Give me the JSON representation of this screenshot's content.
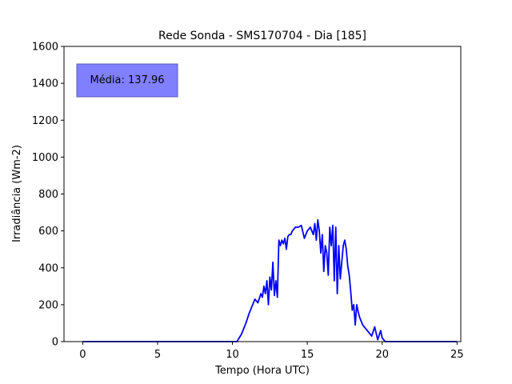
{
  "chart_data": {
    "type": "line",
    "title": "Rede Sonda - SMS170704 - Dia [185]",
    "xlabel": "Tempo (Hora UTC)",
    "ylabel": "Irradiância (Wm-2)",
    "xlim": [
      -1.25,
      25.25
    ],
    "ylim": [
      0,
      1600
    ],
    "x_ticks": [
      0,
      5,
      10,
      15,
      20,
      25
    ],
    "y_ticks": [
      0,
      200,
      400,
      600,
      800,
      1000,
      1200,
      1400,
      1600
    ],
    "grid": false,
    "annotation": "Média: 137.96",
    "annotation_color": "#8080ff",
    "series": [
      {
        "color": "#0000ff",
        "x": [
          0,
          10.3,
          10.6,
          10.9,
          11.1,
          11.3,
          11.5,
          11.7,
          11.9,
          12.0,
          12.1,
          12.2,
          12.3,
          12.4,
          12.5,
          12.6,
          12.7,
          12.8,
          12.9,
          13.0,
          13.1,
          13.2,
          13.3,
          13.4,
          13.5,
          13.6,
          13.7,
          13.8,
          13.9,
          14.0,
          14.2,
          14.4,
          14.6,
          14.8,
          15.0,
          15.2,
          15.4,
          15.5,
          15.6,
          15.7,
          15.8,
          15.9,
          16.0,
          16.1,
          16.2,
          16.3,
          16.4,
          16.5,
          16.6,
          16.7,
          16.8,
          16.9,
          17.0,
          17.1,
          17.2,
          17.3,
          17.4,
          17.5,
          17.6,
          17.7,
          17.8,
          17.9,
          18.0,
          18.1,
          18.2,
          18.3,
          18.4,
          18.5,
          18.6,
          18.7,
          18.8,
          18.9,
          19.0,
          19.1,
          19.2,
          19.3,
          19.5,
          19.7,
          19.9,
          20.0,
          20.1,
          20.2,
          20.3,
          20.5,
          20.7,
          20.9,
          25
        ],
        "y": [
          0,
          0,
          40,
          100,
          150,
          190,
          230,
          210,
          260,
          240,
          300,
          260,
          330,
          200,
          350,
          280,
          430,
          250,
          330,
          240,
          550,
          520,
          550,
          530,
          560,
          500,
          570,
          580,
          580,
          600,
          620,
          620,
          630,
          560,
          600,
          620,
          580,
          640,
          550,
          660,
          600,
          480,
          580,
          380,
          520,
          480,
          360,
          620,
          520,
          630,
          330,
          620,
          260,
          520,
          340,
          430,
          520,
          550,
          500,
          410,
          360,
          270,
          170,
          200,
          90,
          200,
          160,
          130,
          110,
          90,
          80,
          70,
          60,
          50,
          40,
          30,
          80,
          10,
          60,
          20,
          10,
          0,
          0,
          0,
          0,
          0,
          0
        ]
      }
    ]
  }
}
